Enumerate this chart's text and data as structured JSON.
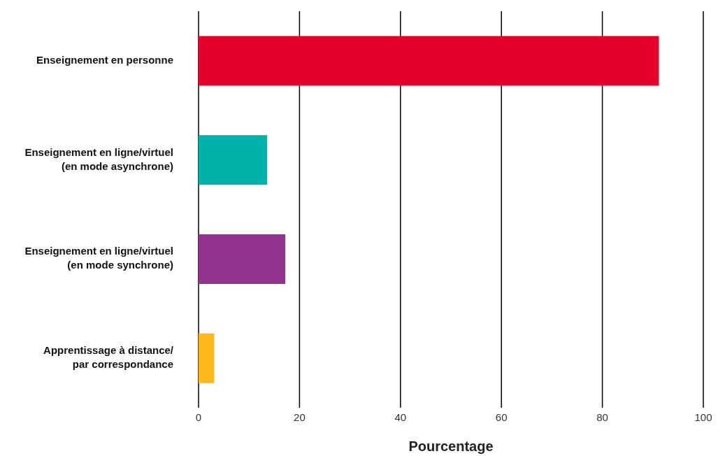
{
  "chart_data": {
    "type": "bar",
    "orientation": "horizontal",
    "xlabel": "Pourcentage",
    "categories": [
      "Enseignement en personne",
      "Enseignement en ligne/virtuel\n(en mode asynchrone)",
      "Enseignement en ligne/virtuel\n(en mode synchrone)",
      "Apprentissage à distance/\npar correspondance"
    ],
    "values": [
      91.2,
      13.6,
      17.2,
      3.1
    ],
    "colors": [
      "#e4002b",
      "#00b2a9",
      "#93328e",
      "#ffb81c"
    ],
    "xlim": [
      0,
      100
    ],
    "xticks": [
      0,
      20,
      40,
      60,
      80,
      100
    ],
    "grid": "x",
    "legend": false
  }
}
